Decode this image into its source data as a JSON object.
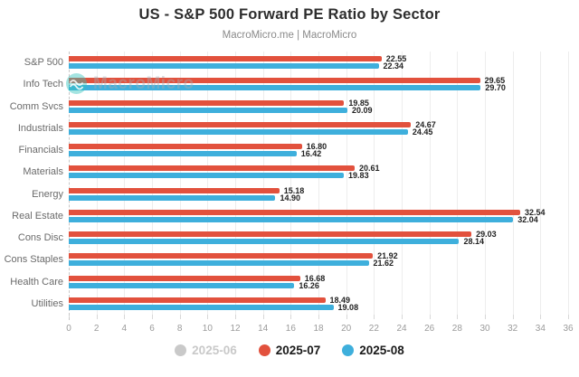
{
  "header": {
    "title": "US - S&P 500 Forward PE Ratio by Sector",
    "subtitle": "MacroMicro.me | MacroMicro"
  },
  "watermark": {
    "text": "MacroMicro",
    "icon": "macromicro-logo"
  },
  "chart_data": {
    "type": "bar",
    "orientation": "horizontal",
    "title": "US - S&P 500 Forward PE Ratio by Sector",
    "xlabel": "",
    "ylabel": "",
    "xlim": [
      0,
      36
    ],
    "xticks": [
      0,
      2,
      4,
      6,
      8,
      10,
      12,
      14,
      16,
      18,
      20,
      22,
      24,
      26,
      28,
      30,
      32,
      34,
      36
    ],
    "grid": true,
    "legend_position": "bottom",
    "categories": [
      "S&P 500",
      "Info Tech",
      "Comm Svcs",
      "Industrials",
      "Financials",
      "Materials",
      "Energy",
      "Real Estate",
      "Cons Disc",
      "Cons Staples",
      "Health Care",
      "Utilities"
    ],
    "series": [
      {
        "name": "2025-06",
        "color": "#c9c9c9",
        "visible": false,
        "values": [],
        "labels": []
      },
      {
        "name": "2025-07",
        "color": "#e2513d",
        "visible": true,
        "values": [
          22.55,
          29.65,
          19.85,
          24.67,
          16.8,
          20.61,
          15.18,
          32.54,
          29.03,
          21.92,
          16.68,
          18.49
        ],
        "labels": [
          "22.55",
          "29.65",
          "19.85",
          "24.67",
          "16.80",
          "20.61",
          "15.18",
          "32.54",
          "29.03",
          "21.92",
          "16.68",
          "18.49"
        ]
      },
      {
        "name": "2025-08",
        "color": "#3eafdc",
        "visible": true,
        "values": [
          22.34,
          29.7,
          20.09,
          24.45,
          16.42,
          19.83,
          14.9,
          32.04,
          28.14,
          21.62,
          16.26,
          19.08
        ],
        "labels": [
          "22.34",
          "29.70",
          "20.09",
          "24.45",
          "16.42",
          "19.83",
          "14.90",
          "32.04",
          "28.14",
          "21.62",
          "16.26",
          "19.08"
        ]
      }
    ]
  },
  "colors": {
    "grid": "#ededed",
    "axis_dashed": "#c8c8c8",
    "watermark_teal": "#35c4bd"
  }
}
